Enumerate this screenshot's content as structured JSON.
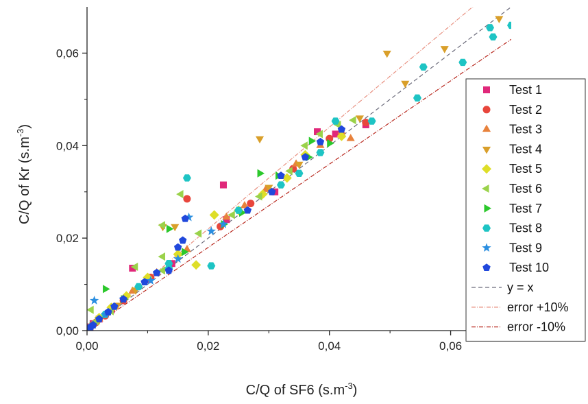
{
  "chart_data": {
    "type": "scatter",
    "xlabel": "C/Q of SF6 (s.m",
    "xlabel_sup": "-3",
    "xlabel_end": ")",
    "ylabel": "C/Q of Kr (s.m",
    "ylabel_sup": "-3",
    "ylabel_end": ")",
    "xlim": [
      0,
      0.07
    ],
    "ylim": [
      0,
      0.07
    ],
    "x_ticks": [
      0,
      0.02,
      0.04,
      0.06
    ],
    "y_ticks": [
      0,
      0.02,
      0.04,
      0.06
    ],
    "x_tick_labels": [
      "0,00",
      "0,02",
      "0,04",
      "0,06"
    ],
    "y_tick_labels": [
      "0,00",
      "0,02",
      "0,04",
      "0,06"
    ],
    "grid": false,
    "legend_position": "right",
    "series": [
      {
        "name": "Test 1",
        "marker": "square",
        "color": "#e0287a",
        "points": [
          [
            0.0005,
            0.0008
          ],
          [
            0.001,
            0.0015
          ],
          [
            0.002,
            0.0025
          ],
          [
            0.004,
            0.0045
          ],
          [
            0.0075,
            0.0135
          ],
          [
            0.01,
            0.011
          ],
          [
            0.014,
            0.0145
          ],
          [
            0.0225,
            0.0315
          ],
          [
            0.023,
            0.024
          ],
          [
            0.031,
            0.03
          ],
          [
            0.038,
            0.043
          ],
          [
            0.041,
            0.0425
          ],
          [
            0.046,
            0.0445
          ]
        ]
      },
      {
        "name": "Test 2",
        "marker": "circle",
        "color": "#e8463c",
        "points": [
          [
            0.0005,
            0.0006
          ],
          [
            0.0015,
            0.0018
          ],
          [
            0.003,
            0.0032
          ],
          [
            0.006,
            0.0065
          ],
          [
            0.0105,
            0.0115
          ],
          [
            0.0165,
            0.0285
          ],
          [
            0.022,
            0.0225
          ],
          [
            0.027,
            0.0275
          ],
          [
            0.034,
            0.035
          ],
          [
            0.04,
            0.0415
          ],
          [
            0.046,
            0.045
          ]
        ]
      },
      {
        "name": "Test 3",
        "marker": "triangle-up",
        "color": "#e8823c",
        "points": [
          [
            0.0008,
            0.001
          ],
          [
            0.002,
            0.0025
          ],
          [
            0.004,
            0.0048
          ],
          [
            0.0075,
            0.0085
          ],
          [
            0.0115,
            0.0125
          ],
          [
            0.0165,
            0.0175
          ],
          [
            0.023,
            0.0245
          ],
          [
            0.026,
            0.027
          ],
          [
            0.0295,
            0.0305
          ],
          [
            0.0345,
            0.036
          ],
          [
            0.0385,
            0.04
          ],
          [
            0.042,
            0.043
          ],
          [
            0.0435,
            0.0415
          ]
        ]
      },
      {
        "name": "Test 4",
        "marker": "triangle-down",
        "color": "#d99f2a",
        "points": [
          [
            0.0006,
            0.0007
          ],
          [
            0.002,
            0.0023
          ],
          [
            0.005,
            0.0055
          ],
          [
            0.008,
            0.0088
          ],
          [
            0.0125,
            0.0225
          ],
          [
            0.0145,
            0.0225
          ],
          [
            0.0285,
            0.0415
          ],
          [
            0.03,
            0.031
          ],
          [
            0.035,
            0.036
          ],
          [
            0.045,
            0.046
          ],
          [
            0.0495,
            0.06
          ],
          [
            0.0525,
            0.0535
          ],
          [
            0.059,
            0.061
          ],
          [
            0.068,
            0.0675
          ]
        ]
      },
      {
        "name": "Test 5",
        "marker": "diamond",
        "color": "#dede28",
        "points": [
          [
            0.0006,
            0.0008
          ],
          [
            0.002,
            0.0028
          ],
          [
            0.004,
            0.005
          ],
          [
            0.0065,
            0.0075
          ],
          [
            0.01,
            0.0115
          ],
          [
            0.015,
            0.0165
          ],
          [
            0.018,
            0.0142
          ],
          [
            0.021,
            0.025
          ],
          [
            0.025,
            0.026
          ],
          [
            0.029,
            0.0295
          ],
          [
            0.033,
            0.033
          ],
          [
            0.036,
            0.038
          ],
          [
            0.042,
            0.042
          ]
        ]
      },
      {
        "name": "Test 6",
        "marker": "triangle-left",
        "color": "#9ad24a",
        "points": [
          [
            0.0007,
            0.0045
          ],
          [
            0.0015,
            0.002
          ],
          [
            0.004,
            0.0042
          ],
          [
            0.008,
            0.0138
          ],
          [
            0.0125,
            0.013
          ],
          [
            0.0125,
            0.0228
          ],
          [
            0.0125,
            0.016
          ],
          [
            0.0155,
            0.0295
          ],
          [
            0.0185,
            0.021
          ],
          [
            0.024,
            0.025
          ],
          [
            0.0285,
            0.029
          ],
          [
            0.0335,
            0.0345
          ],
          [
            0.036,
            0.04
          ],
          [
            0.0385,
            0.0425
          ],
          [
            0.0415,
            0.0445
          ],
          [
            0.044,
            0.0455
          ]
        ]
      },
      {
        "name": "Test 7",
        "marker": "triangle-right",
        "color": "#2cc82c",
        "points": [
          [
            0.0008,
            0.0009
          ],
          [
            0.003,
            0.009
          ],
          [
            0.006,
            0.0068
          ],
          [
            0.0135,
            0.022
          ],
          [
            0.016,
            0.017
          ],
          [
            0.0225,
            0.023
          ],
          [
            0.0255,
            0.0255
          ],
          [
            0.0285,
            0.034
          ],
          [
            0.0315,
            0.0335
          ],
          [
            0.0365,
            0.0375
          ],
          [
            0.037,
            0.041
          ],
          [
            0.04,
            0.0405
          ]
        ]
      },
      {
        "name": "Test 8",
        "marker": "hexagon",
        "color": "#1ec4c4",
        "points": [
          [
            0.0005,
            0.0006
          ],
          [
            0.003,
            0.0035
          ],
          [
            0.0085,
            0.0095
          ],
          [
            0.0135,
            0.0145
          ],
          [
            0.0135,
            0.0135
          ],
          [
            0.0165,
            0.033
          ],
          [
            0.0205,
            0.014
          ],
          [
            0.025,
            0.026
          ],
          [
            0.032,
            0.0315
          ],
          [
            0.035,
            0.034
          ],
          [
            0.0385,
            0.0385
          ],
          [
            0.041,
            0.0453
          ],
          [
            0.047,
            0.0453
          ],
          [
            0.0545,
            0.0503
          ],
          [
            0.0555,
            0.057
          ],
          [
            0.062,
            0.058
          ],
          [
            0.0665,
            0.0655
          ],
          [
            0.067,
            0.0635
          ],
          [
            0.07,
            0.066
          ]
        ]
      },
      {
        "name": "Test 9",
        "marker": "star",
        "color": "#2a8ee0",
        "points": [
          [
            0.0005,
            0.0006
          ],
          [
            0.0012,
            0.0065
          ],
          [
            0.003,
            0.0035
          ],
          [
            0.006,
            0.0068
          ],
          [
            0.0105,
            0.0108
          ],
          [
            0.015,
            0.0155
          ],
          [
            0.0168,
            0.0245
          ],
          [
            0.0205,
            0.0215
          ],
          [
            0.0225,
            0.023
          ]
        ]
      },
      {
        "name": "Test 10",
        "marker": "pentagon",
        "color": "#2048dc",
        "points": [
          [
            0.0002,
            0.0003
          ],
          [
            0.0006,
            0.0008
          ],
          [
            0.001,
            0.0012
          ],
          [
            0.002,
            0.0025
          ],
          [
            0.0035,
            0.004
          ],
          [
            0.0045,
            0.0052
          ],
          [
            0.006,
            0.0068
          ],
          [
            0.0095,
            0.0105
          ],
          [
            0.0115,
            0.0125
          ],
          [
            0.0135,
            0.013
          ],
          [
            0.015,
            0.018
          ],
          [
            0.0158,
            0.0195
          ],
          [
            0.0162,
            0.0242
          ],
          [
            0.0265,
            0.026
          ],
          [
            0.0305,
            0.03
          ],
          [
            0.032,
            0.0335
          ],
          [
            0.036,
            0.0375
          ],
          [
            0.0385,
            0.0408
          ],
          [
            0.042,
            0.0435
          ]
        ]
      }
    ],
    "reference_lines": [
      {
        "name": "y = x",
        "slope": 1.0,
        "color": "#6a6a7a",
        "dash": "6,4"
      },
      {
        "name": "error +10%",
        "slope": 1.1,
        "color": "#e89080",
        "dash": "6,2,1,2"
      },
      {
        "name": "error -10%",
        "slope": 0.9,
        "color": "#b8281e",
        "dash": "6,2,1,2"
      }
    ]
  }
}
